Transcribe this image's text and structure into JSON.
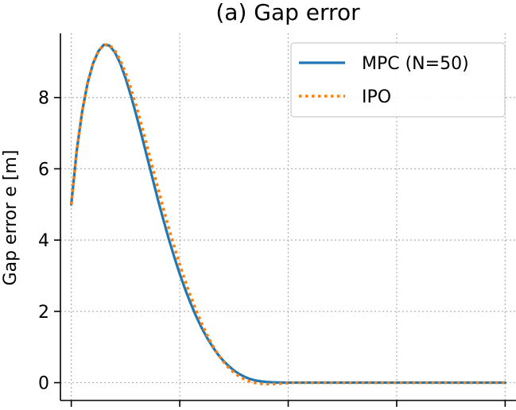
{
  "chart_data": {
    "type": "line",
    "title": "(a) Gap error",
    "xlabel": "",
    "ylabel": "Gap error e [m]",
    "xlim": [
      -0.1,
      4.1
    ],
    "ylim": [
      -0.5,
      9.8
    ],
    "xticks": [
      0,
      1,
      2,
      3,
      4
    ],
    "yticks": [
      0,
      2,
      4,
      6,
      8
    ],
    "ytick_labels": [
      "0",
      "2",
      "4",
      "6",
      "8"
    ],
    "grid": true,
    "legend_position": "top-right",
    "series": [
      {
        "name": "MPC (N=50)",
        "color": "#1f77b4",
        "style": "solid",
        "x": [
          0,
          0.05,
          0.1,
          0.15,
          0.2,
          0.25,
          0.3,
          0.35,
          0.4,
          0.45,
          0.5,
          0.55,
          0.6,
          0.65,
          0.7,
          0.75,
          0.8,
          0.85,
          0.9,
          0.95,
          1.0,
          1.05,
          1.1,
          1.15,
          1.2,
          1.25,
          1.3,
          1.35,
          1.4,
          1.45,
          1.5,
          1.55,
          1.6,
          1.65,
          1.7,
          1.75,
          1.8,
          1.85,
          1.9,
          1.95,
          2.0,
          2.05,
          2.1,
          2.2,
          2.4,
          2.6,
          2.8,
          3.0,
          3.2,
          3.4,
          3.6,
          3.8,
          4.0
        ],
        "values": [
          5.0,
          6.5,
          7.6,
          8.4,
          8.95,
          9.3,
          9.48,
          9.46,
          9.28,
          8.97,
          8.55,
          8.05,
          7.5,
          6.92,
          6.32,
          5.72,
          5.12,
          4.56,
          4.02,
          3.52,
          3.05,
          2.62,
          2.23,
          1.87,
          1.55,
          1.27,
          1.02,
          0.8,
          0.62,
          0.47,
          0.34,
          0.24,
          0.16,
          0.1,
          0.06,
          0.035,
          0.02,
          0.01,
          0.005,
          0.002,
          0.0,
          0.0,
          0.0,
          0.0,
          0.0,
          0.0,
          0.0,
          0.0,
          0.0,
          0.0,
          0.0,
          0.0,
          0.0
        ]
      },
      {
        "name": "IPO",
        "color": "#ff7f0e",
        "style": "dotted",
        "x": [
          0,
          0.05,
          0.1,
          0.15,
          0.2,
          0.25,
          0.3,
          0.35,
          0.4,
          0.45,
          0.5,
          0.55,
          0.6,
          0.65,
          0.7,
          0.75,
          0.8,
          0.85,
          0.9,
          0.95,
          1.0,
          1.05,
          1.1,
          1.15,
          1.2,
          1.25,
          1.3,
          1.35,
          1.4,
          1.45,
          1.5,
          1.55,
          1.6,
          1.65,
          1.7,
          1.75,
          1.8,
          1.85,
          1.9,
          1.95,
          2.0,
          2.05,
          2.1,
          2.2,
          2.4,
          2.6,
          2.8,
          3.0,
          3.2,
          3.4,
          3.6,
          3.8,
          4.0
        ],
        "values": [
          5.0,
          6.5,
          7.6,
          8.4,
          8.95,
          9.3,
          9.48,
          9.48,
          9.33,
          9.06,
          8.7,
          8.25,
          7.75,
          7.2,
          6.62,
          6.03,
          5.45,
          4.88,
          4.33,
          3.81,
          3.32,
          2.86,
          2.43,
          2.04,
          1.68,
          1.35,
          1.06,
          0.81,
          0.6,
          0.42,
          0.28,
          0.17,
          0.09,
          0.03,
          -0.01,
          -0.03,
          -0.04,
          -0.04,
          -0.03,
          -0.02,
          -0.01,
          0.0,
          0.0,
          0.0,
          0.0,
          0.0,
          0.0,
          0.0,
          0.0,
          0.0,
          0.0,
          0.0,
          0.0
        ]
      }
    ]
  }
}
